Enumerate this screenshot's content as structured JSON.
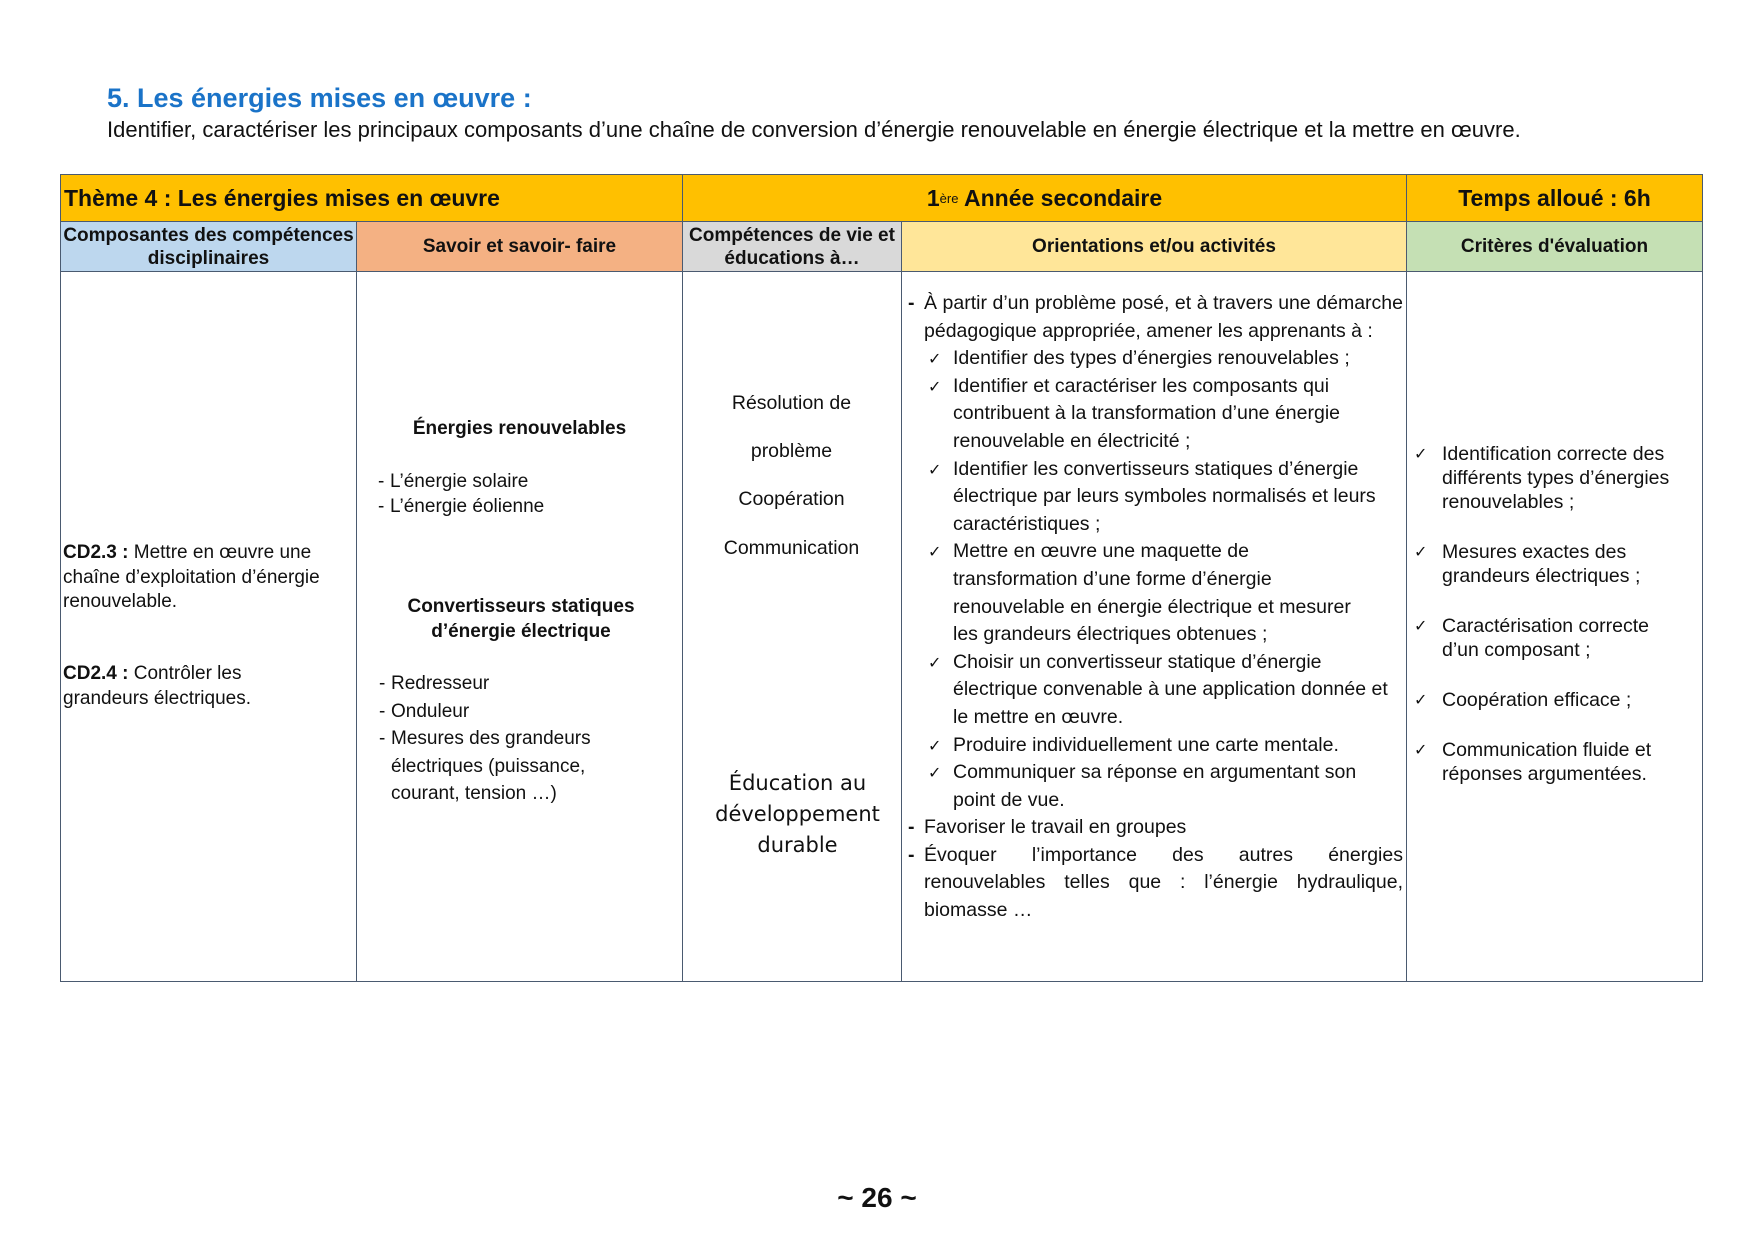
{
  "section": {
    "title": "5. Les énergies mises en œuvre :",
    "intro": "Identifier, caractériser les principaux composants d’une chaîne de conversion d’énergie renouvelable en énergie électrique et la mettre en œuvre."
  },
  "table": {
    "header": {
      "theme": "Thème 4 : Les énergies mises en œuvre",
      "year_num": "1",
      "year_sup": "ère",
      "year_rest": " Année secondaire",
      "time": "Temps alloué : 6h"
    },
    "columns": [
      {
        "label": "Composantes des compétences disciplinaires",
        "color": "#bdd7ee"
      },
      {
        "label": "Savoir et savoir- faire",
        "color": "#f4b183"
      },
      {
        "label": "Compétences de vie et éducations à…",
        "color": "#d9d9d9"
      },
      {
        "label": "Orientations et/ou activités",
        "color": "#ffe699"
      },
      {
        "label": "Critères d'évaluation",
        "color": "#c5e0b4"
      }
    ],
    "competences": [
      {
        "code": "CD2.3 :",
        "text": " Mettre en œuvre une chaîne d’exploitation d’énergie renouvelable."
      },
      {
        "code": "CD2.4 :",
        "text": " Contrôler les grandeurs électriques."
      }
    ],
    "savoir": {
      "group1_title": "Énergies renouvelables",
      "group1_items": [
        "L’énergie solaire",
        "L’énergie éolienne"
      ],
      "group2_title": "Convertisseurs statiques d’énergie électrique",
      "group2_items": [
        "Redresseur",
        "Onduleur",
        "Mesures des grandeurs électriques (puissance, courant, tension …)"
      ]
    },
    "competences_vie": {
      "items": [
        "Résolution de",
        "problème",
        "Coopération",
        "Communication"
      ],
      "education": [
        "Éducation au",
        "développement",
        "durable"
      ]
    },
    "orientations": {
      "intro": "À partir d’un problème posé, et à travers une démarche pédagogique appropriée, amener les apprenants à :",
      "checks": [
        "Identifier des types d’énergies renouvelables ;",
        "Identifier et caractériser les composants qui contribuent à la transformation d’une énergie renouvelable en électricité ;",
        "Identifier les convertisseurs statiques d’énergie électrique par leurs symboles normalisés et leurs caractéristiques ;",
        "Mettre en œuvre une maquette de transformation d’une forme d’énergie renouvelable en énergie électrique et mesurer les grandeurs électriques obtenues ;",
        "Choisir un convertisseur statique d’énergie électrique convenable à une application donnée et le mettre en œuvre.",
        "Produire individuellement une carte mentale.",
        "Communiquer sa réponse en argumentant son point de vue."
      ],
      "extra": [
        "Favoriser le travail en groupes",
        "Évoquer l’importance des autres énergies renouvelables telles que : l’énergie hydraulique, biomasse …"
      ]
    },
    "criteres": [
      "Identification correcte des différents types d’énergies renouvelables ;",
      "Mesures exactes des grandeurs électriques ;",
      "Caractérisation correcte d’un composant ;",
      "Coopération efficace ;",
      "Communication fluide et réponses argumentées."
    ]
  },
  "footer": {
    "page": "~ 26 ~"
  }
}
